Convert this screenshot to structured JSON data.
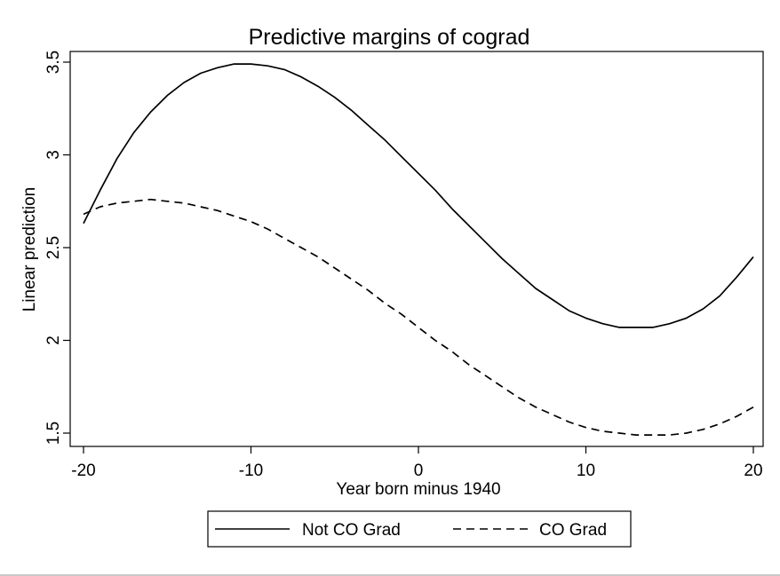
{
  "chart_data": {
    "type": "line",
    "title": "Predictive margins of cograd",
    "xlabel": "Year born minus 1940",
    "ylabel": "Linear prediction",
    "xlim": [
      -20,
      20
    ],
    "ylim": [
      1.5,
      3.5
    ],
    "xticks": [
      -20,
      -10,
      0,
      10,
      20
    ],
    "xtick_labels": [
      "-20",
      "-10",
      "0",
      "10",
      "20"
    ],
    "yticks": [
      1.5,
      2,
      2.5,
      3,
      3.5
    ],
    "ytick_labels": [
      "1.5",
      "2",
      "2.5",
      "3",
      "3.5"
    ],
    "grid": false,
    "legend_position": "bottom",
    "series": [
      {
        "name": "Not CO Grad",
        "style": "solid",
        "color": "#000000",
        "x": [
          -20,
          -19,
          -18,
          -17,
          -16,
          -15,
          -14,
          -13,
          -12,
          -11,
          -10,
          -9,
          -8,
          -7,
          -6,
          -5,
          -4,
          -3,
          -2,
          -1,
          0,
          1,
          2,
          3,
          4,
          5,
          6,
          7,
          8,
          9,
          10,
          11,
          12,
          13,
          14,
          15,
          16,
          17,
          18,
          19,
          20
        ],
        "y": [
          2.63,
          2.81,
          2.98,
          3.12,
          3.23,
          3.32,
          3.39,
          3.44,
          3.47,
          3.49,
          3.49,
          3.48,
          3.46,
          3.42,
          3.37,
          3.31,
          3.24,
          3.16,
          3.08,
          2.99,
          2.9,
          2.81,
          2.71,
          2.62,
          2.53,
          2.44,
          2.36,
          2.28,
          2.22,
          2.16,
          2.12,
          2.09,
          2.07,
          2.07,
          2.07,
          2.09,
          2.12,
          2.17,
          2.24,
          2.34,
          2.45
        ]
      },
      {
        "name": "CO Grad",
        "style": "dashed",
        "color": "#000000",
        "x": [
          -20,
          -19,
          -18,
          -17,
          -16,
          -15,
          -14,
          -13,
          -12,
          -11,
          -10,
          -9,
          -8,
          -7,
          -6,
          -5,
          -4,
          -3,
          -2,
          -1,
          0,
          1,
          2,
          3,
          4,
          5,
          6,
          7,
          8,
          9,
          10,
          11,
          12,
          13,
          14,
          15,
          16,
          17,
          18,
          19,
          20
        ],
        "y": [
          2.68,
          2.72,
          2.74,
          2.75,
          2.76,
          2.75,
          2.74,
          2.72,
          2.7,
          2.67,
          2.64,
          2.6,
          2.55,
          2.5,
          2.45,
          2.39,
          2.33,
          2.27,
          2.2,
          2.14,
          2.07,
          2.0,
          1.94,
          1.87,
          1.81,
          1.75,
          1.69,
          1.64,
          1.6,
          1.56,
          1.53,
          1.51,
          1.5,
          1.49,
          1.49,
          1.49,
          1.5,
          1.52,
          1.55,
          1.59,
          1.64
        ]
      }
    ]
  }
}
